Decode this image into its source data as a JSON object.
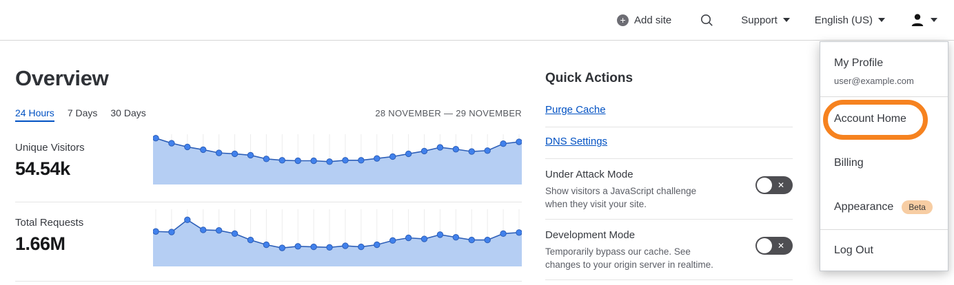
{
  "header": {
    "add_site_label": "Add site",
    "support_label": "Support",
    "language_label": "English (US)"
  },
  "main": {
    "title": "Overview",
    "tabs": [
      {
        "label": "24 Hours",
        "active": true
      },
      {
        "label": "7 Days",
        "active": false
      },
      {
        "label": "30 Days",
        "active": false
      }
    ],
    "date_range": "28 NOVEMBER — 29 NOVEMBER",
    "metrics": [
      {
        "label": "Unique Visitors",
        "value": "54.54k"
      },
      {
        "label": "Total Requests",
        "value": "1.66M"
      }
    ]
  },
  "quick_actions": {
    "title": "Quick Actions",
    "links": [
      "Purge Cache",
      "DNS Settings"
    ],
    "toggles": [
      {
        "title": "Under Attack Mode",
        "description": "Show visitors a JavaScript challenge when they visit your site.",
        "state": "off"
      },
      {
        "title": "Development Mode",
        "description": "Temporarily bypass our cache. See changes to your origin server in realtime.",
        "state": "off"
      }
    ]
  },
  "user_menu": {
    "profile_label": "My Profile",
    "email": "user@example.com",
    "items": [
      {
        "label": "Account Home",
        "highlighted": true
      },
      {
        "label": "Billing"
      },
      {
        "label": "Appearance",
        "badge": "Beta"
      }
    ],
    "logout_label": "Log Out",
    "annotation": {
      "type": "highlight-ring",
      "target": "Account Home",
      "color": "#f6821f"
    }
  },
  "chart_data": [
    {
      "type": "area",
      "title": "Unique Visitors",
      "total_label": "54.54k",
      "x_axis": "last 24 hours (28 November — 29 November), one point per hour",
      "x": [
        0,
        1,
        2,
        3,
        4,
        5,
        6,
        7,
        8,
        9,
        10,
        11,
        12,
        13,
        14,
        15,
        16,
        17,
        18,
        19,
        20,
        21,
        22,
        23
      ],
      "values_normalized": [
        0.96,
        0.85,
        0.77,
        0.71,
        0.64,
        0.62,
        0.59,
        0.51,
        0.48,
        0.47,
        0.47,
        0.45,
        0.48,
        0.48,
        0.52,
        0.56,
        0.62,
        0.68,
        0.76,
        0.72,
        0.67,
        0.69,
        0.84,
        0.88
      ],
      "ylim": [
        0,
        1
      ],
      "grid": "vertical",
      "tick_labels_visible": false,
      "legend": "none"
    },
    {
      "type": "area",
      "title": "Total Requests",
      "total_label": "1.66M",
      "x_axis": "last 24 hours (28 November — 29 November), one point per hour",
      "x": [
        0,
        1,
        2,
        3,
        4,
        5,
        6,
        7,
        8,
        9,
        10,
        11,
        12,
        13,
        14,
        15,
        16,
        17,
        18,
        19,
        20,
        21,
        22,
        23
      ],
      "values_normalized": [
        0.62,
        0.61,
        0.84,
        0.65,
        0.64,
        0.58,
        0.46,
        0.37,
        0.31,
        0.34,
        0.33,
        0.32,
        0.35,
        0.33,
        0.37,
        0.45,
        0.5,
        0.48,
        0.56,
        0.51,
        0.46,
        0.46,
        0.58,
        0.6
      ],
      "ylim": [
        0,
        1
      ],
      "grid": "vertical",
      "tick_labels_visible": false,
      "legend": "none"
    }
  ],
  "colors": {
    "accent_blue": "#0051c3",
    "chart_fill": "#b5cef3",
    "chart_line": "#2d5fb8",
    "chart_dot": "#4181ec",
    "chart_grid": "#ececec",
    "toggle_bg": "#4e4e52",
    "highlight_orange": "#f6821f",
    "beta_badge_bg": "#f7cda3"
  }
}
